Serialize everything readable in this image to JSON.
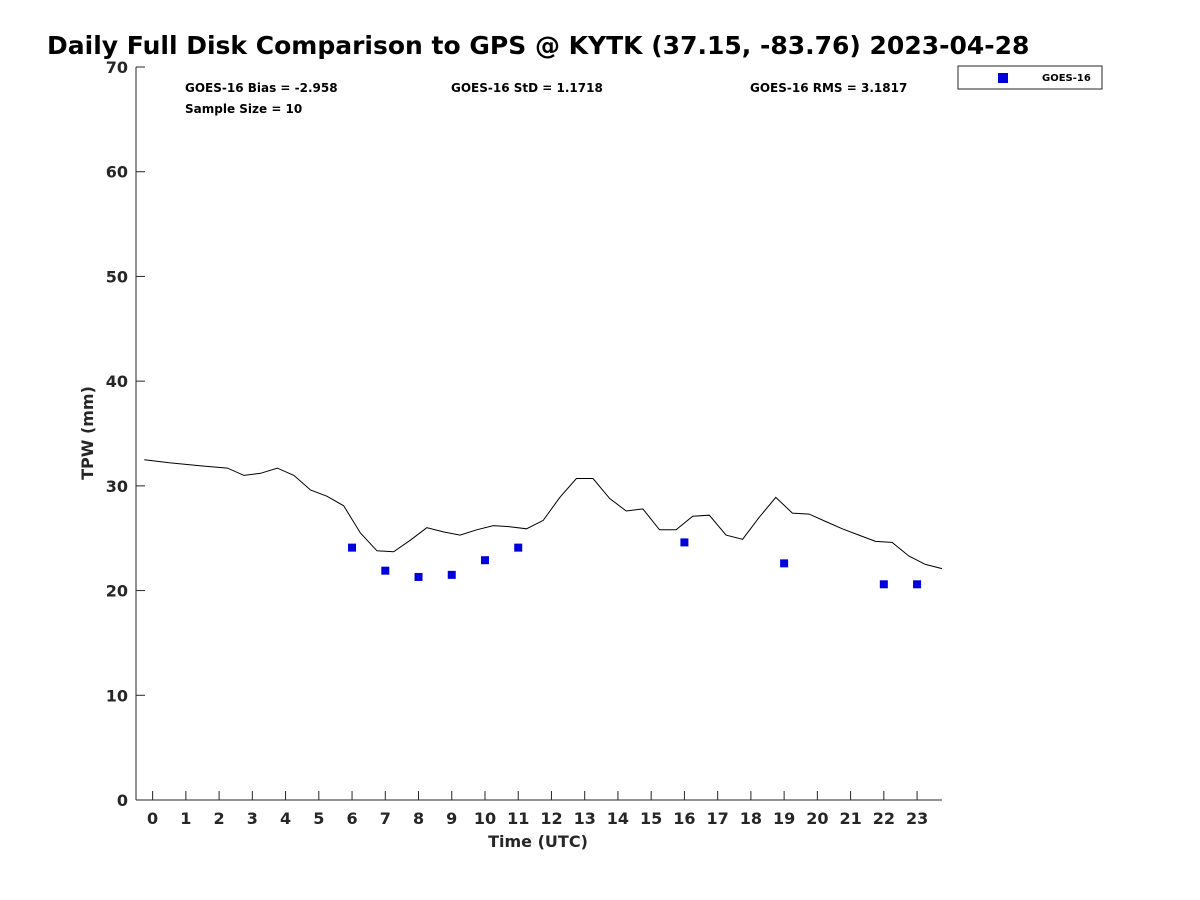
{
  "chart_data": {
    "type": "scatter",
    "title": "Daily Full Disk Comparison to GPS @ KYTK (37.15, -83.76) 2023-04-28",
    "xlabel": "Time (UTC)",
    "ylabel": "TPW (mm)",
    "xlim": [
      -0.5,
      23.75
    ],
    "ylim": [
      0,
      70
    ],
    "x_ticks": [
      "0",
      "1",
      "2",
      "3",
      "4",
      "5",
      "6",
      "7",
      "8",
      "9",
      "10",
      "11",
      "12",
      "13",
      "14",
      "15",
      "16",
      "17",
      "18",
      "19",
      "20",
      "21",
      "22",
      "23"
    ],
    "y_ticks": [
      "0",
      "10",
      "20",
      "30",
      "40",
      "50",
      "60",
      "70"
    ],
    "grid": false,
    "legend_position": "top-right",
    "stats": {
      "bias": "GOES-16 Bias = -2.958",
      "std": "GOES-16 StD = 1.1718",
      "rms": "GOES-16 RMS = 3.1817",
      "sample_size": "Sample Size = 10"
    },
    "gps_line": {
      "x": [
        -0.25,
        0.5,
        1.5,
        2.25,
        2.75,
        3.25,
        3.75,
        4.25,
        4.75,
        5.25,
        5.75,
        6.25,
        6.75,
        7.25,
        7.75,
        8.25,
        8.75,
        9.25,
        9.75,
        10.25,
        10.75,
        11.25,
        11.75,
        12.25,
        12.75,
        13.25,
        13.75,
        14.25,
        14.75,
        15.25,
        15.75,
        16.25,
        16.75,
        17.25,
        17.75,
        18.25,
        18.75,
        19.25,
        19.75,
        20.25,
        20.75,
        21.25,
        21.75,
        22.25,
        22.75,
        23.25,
        23.75
      ],
      "y": [
        32.5,
        32.2,
        31.9,
        31.7,
        31.0,
        31.2,
        31.7,
        31.0,
        29.6,
        29.0,
        28.1,
        25.5,
        23.8,
        23.7,
        24.8,
        26.0,
        25.6,
        25.3,
        25.8,
        26.2,
        26.1,
        25.9,
        26.7,
        28.9,
        30.7,
        30.7,
        28.8,
        27.6,
        27.8,
        25.8,
        25.8,
        27.1,
        27.2,
        25.3,
        24.9,
        27.0,
        28.9,
        27.4,
        27.3,
        26.6,
        25.9,
        25.3,
        24.7,
        24.6,
        23.3,
        22.5,
        22.1
      ]
    },
    "series": [
      {
        "name": "GOES-16",
        "color": "#0000dd",
        "marker": "square",
        "x": [
          6,
          7,
          8,
          9,
          10,
          11,
          16,
          19,
          22,
          23
        ],
        "y": [
          24.1,
          21.9,
          21.3,
          21.5,
          22.9,
          24.1,
          24.6,
          22.6,
          20.6,
          20.6
        ]
      }
    ]
  }
}
